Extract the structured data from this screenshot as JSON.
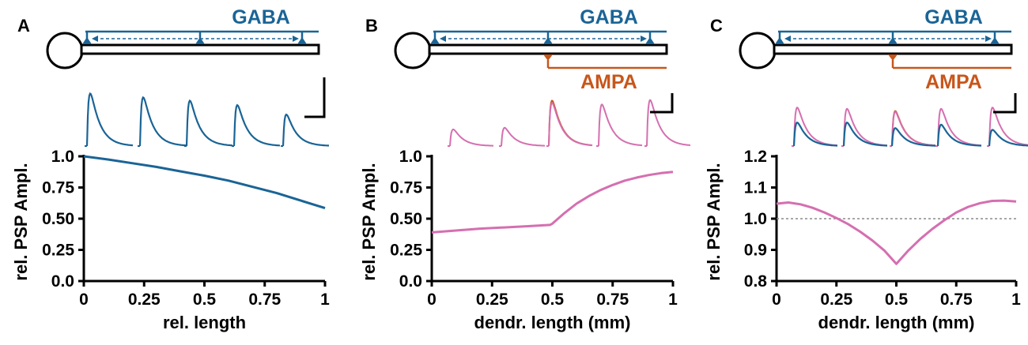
{
  "colors": {
    "gaba": "#1a6496",
    "ampa": "#c8561a",
    "combined": "#d56fb0",
    "axis": "#000000",
    "reference": "#8a8a8a"
  },
  "panels": [
    {
      "letter": "A",
      "gaba_label": "GABA",
      "ampa_label": "",
      "has_ampa": false
    },
    {
      "letter": "B",
      "gaba_label": "GABA",
      "ampa_label": "AMPA",
      "has_ampa": true
    },
    {
      "letter": "C",
      "gaba_label": "GABA",
      "ampa_label": "AMPA",
      "has_ampa": true
    }
  ],
  "chart_data": [
    {
      "type": "line",
      "title": "",
      "xlabel": "rel. length",
      "ylabel": "rel. PSP Ampl.",
      "xlim": [
        0,
        1
      ],
      "ylim": [
        0,
        1
      ],
      "xticks": [
        "0",
        "0.25",
        "0.5",
        "0.75",
        "1"
      ],
      "yticks": [
        "0.0",
        "0.25",
        "0.50",
        "0.75",
        "1.0"
      ],
      "series": [
        {
          "color": "#1a6496",
          "x": [
            0,
            0.1,
            0.2,
            0.3,
            0.4,
            0.5,
            0.6,
            0.7,
            0.8,
            0.9,
            1.0
          ],
          "y": [
            1.0,
            0.975,
            0.945,
            0.915,
            0.88,
            0.845,
            0.805,
            0.755,
            0.705,
            0.645,
            0.585
          ]
        }
      ],
      "reference_line": null
    },
    {
      "type": "line",
      "title": "",
      "xlabel": "dendr. length (mm)",
      "ylabel": "rel. PSP Ampl.",
      "xlim": [
        0,
        1
      ],
      "ylim": [
        0,
        1
      ],
      "xticks": [
        "0",
        "0.25",
        "0.5",
        "0.75",
        "1"
      ],
      "yticks": [
        "0.0",
        "0.25",
        "0.50",
        "0.75",
        "1.0"
      ],
      "series": [
        {
          "color": "#d56fb0",
          "x": [
            0,
            0.1,
            0.2,
            0.3,
            0.4,
            0.49,
            0.5,
            0.55,
            0.6,
            0.65,
            0.7,
            0.75,
            0.8,
            0.85,
            0.9,
            0.95,
            1.0
          ],
          "y": [
            0.39,
            0.405,
            0.42,
            0.43,
            0.44,
            0.45,
            0.46,
            0.545,
            0.62,
            0.68,
            0.73,
            0.77,
            0.805,
            0.83,
            0.85,
            0.865,
            0.875
          ]
        }
      ],
      "reference_line": null
    },
    {
      "type": "line",
      "title": "",
      "xlabel": "dendr. length (mm)",
      "ylabel": "rel. PSP Ampl.",
      "xlim": [
        0,
        1
      ],
      "ylim": [
        0.8,
        1.2
      ],
      "xticks": [
        "0",
        "0.25",
        "0.5",
        "0.75",
        "1"
      ],
      "yticks": [
        "0.8",
        "0.9",
        "1.0",
        "1.1",
        "1.2"
      ],
      "series": [
        {
          "color": "#d56fb0",
          "x": [
            0,
            0.05,
            0.1,
            0.15,
            0.2,
            0.25,
            0.3,
            0.35,
            0.4,
            0.45,
            0.5,
            0.55,
            0.6,
            0.65,
            0.7,
            0.75,
            0.8,
            0.85,
            0.9,
            0.95,
            1.0
          ],
          "y": [
            1.048,
            1.052,
            1.046,
            1.035,
            1.02,
            1.002,
            0.982,
            0.958,
            0.93,
            0.898,
            0.855,
            0.898,
            0.935,
            0.967,
            0.995,
            1.02,
            1.038,
            1.05,
            1.057,
            1.058,
            1.055
          ]
        }
      ],
      "reference_line": 1.0
    }
  ],
  "traces": [
    {
      "amplitude_scale": 1.0,
      "items": [
        {
          "gaba": 0.95
        },
        {
          "gaba": 0.88
        },
        {
          "gaba": 0.82
        },
        {
          "gaba": 0.74
        },
        {
          "gaba": 0.57
        }
      ]
    },
    {
      "amplitude_scale": 1.0,
      "items": [
        {
          "combined": 0.3,
          "ampa": null
        },
        {
          "combined": 0.33,
          "ampa": null
        },
        {
          "combined": 0.78,
          "ampa": 0.82
        },
        {
          "combined": 0.75,
          "ampa": null
        },
        {
          "combined": 0.83,
          "ampa": null
        }
      ]
    },
    {
      "amplitude_scale": 1.0,
      "items": [
        {
          "combined": 0.9,
          "gaba": 0.55
        },
        {
          "combined": 0.87,
          "gaba": 0.55
        },
        {
          "combined": 0.8,
          "ampa": 0.82,
          "gaba": 0.42
        },
        {
          "combined": 0.87,
          "gaba": 0.5
        },
        {
          "combined": 0.9,
          "gaba": 0.38
        }
      ]
    }
  ]
}
